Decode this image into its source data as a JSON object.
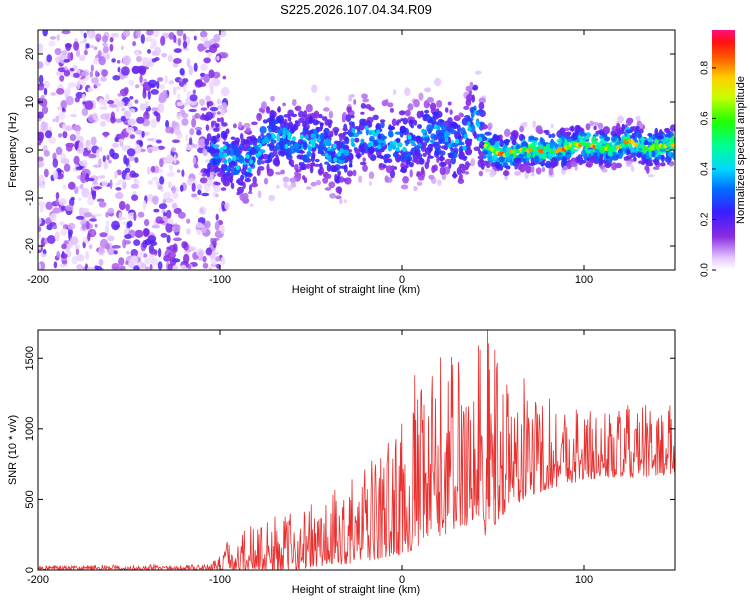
{
  "title": "S225.2026.107.04.34.R09",
  "chart_data": [
    {
      "type": "heatmap",
      "name": "spectrogram",
      "xlabel": "Height of straight line (km)",
      "ylabel": "Frequency (Hz)",
      "xlim": [
        -200,
        150
      ],
      "ylim": [
        -25,
        25
      ],
      "xticks": [
        "-200",
        "-100",
        "0",
        "100"
      ],
      "yticks": [
        "-20",
        "-10",
        "0",
        "10",
        "20"
      ],
      "colorbar": {
        "label": "Normalized spectral amplitude",
        "range": [
          0.0,
          0.95
        ],
        "ticks": [
          "0.0",
          "0.2",
          "0.4",
          "0.6",
          "0.8"
        ]
      },
      "noise_region_end_km": -105,
      "ridge": [
        {
          "x": -105,
          "y": 1
        },
        {
          "x": -95,
          "y": -2
        },
        {
          "x": -85,
          "y": -3
        },
        {
          "x": -75,
          "y": 2
        },
        {
          "x": -65,
          "y": 3
        },
        {
          "x": -55,
          "y": 1
        },
        {
          "x": -45,
          "y": 2
        },
        {
          "x": -35,
          "y": -2
        },
        {
          "x": -25,
          "y": 3
        },
        {
          "x": -15,
          "y": 3
        },
        {
          "x": -5,
          "y": 1
        },
        {
          "x": 5,
          "y": 1
        },
        {
          "x": 15,
          "y": 3
        },
        {
          "x": 25,
          "y": 3
        },
        {
          "x": 30,
          "y": 0
        },
        {
          "x": 35,
          "y": 2
        },
        {
          "x": 40,
          "y": 8
        },
        {
          "x": 45,
          "y": 1
        },
        {
          "x": 55,
          "y": -1
        },
        {
          "x": 65,
          "y": 0
        },
        {
          "x": 75,
          "y": 0
        },
        {
          "x": 85,
          "y": 0
        },
        {
          "x": 95,
          "y": 1
        },
        {
          "x": 105,
          "y": 1
        },
        {
          "x": 115,
          "y": 0
        },
        {
          "x": 125,
          "y": 2
        },
        {
          "x": 135,
          "y": 0
        },
        {
          "x": 145,
          "y": 1
        }
      ]
    },
    {
      "type": "line",
      "name": "snr",
      "xlabel": "Height of straight line (km)",
      "ylabel": "SNR (10 * v/v)",
      "xlim": [
        -200,
        150
      ],
      "ylim": [
        0,
        1700
      ],
      "xticks": [
        "-200",
        "-100",
        "0",
        "100"
      ],
      "yticks": [
        "0",
        "500",
        "1000",
        "1500"
      ],
      "color": "#e8302f",
      "envelope": [
        {
          "x": -200,
          "base": 10,
          "amp": 20
        },
        {
          "x": -105,
          "base": 12,
          "amp": 25
        },
        {
          "x": -95,
          "base": 60,
          "amp": 150
        },
        {
          "x": -80,
          "base": 90,
          "amp": 230
        },
        {
          "x": -60,
          "base": 120,
          "amp": 260
        },
        {
          "x": -40,
          "base": 170,
          "amp": 320
        },
        {
          "x": -20,
          "base": 250,
          "amp": 420
        },
        {
          "x": 0,
          "base": 380,
          "amp": 600
        },
        {
          "x": 10,
          "base": 480,
          "amp": 700
        },
        {
          "x": 20,
          "base": 600,
          "amp": 820
        },
        {
          "x": 35,
          "base": 700,
          "amp": 850
        },
        {
          "x": 45,
          "base": 650,
          "amp": 950
        },
        {
          "x": 55,
          "base": 700,
          "amp": 700
        },
        {
          "x": 70,
          "base": 760,
          "amp": 520
        },
        {
          "x": 90,
          "base": 780,
          "amp": 380
        },
        {
          "x": 110,
          "base": 790,
          "amp": 300
        },
        {
          "x": 130,
          "base": 800,
          "amp": 330
        },
        {
          "x": 150,
          "base": 820,
          "amp": 300
        }
      ],
      "peaks": [
        {
          "x": 7,
          "y": 1380
        },
        {
          "x": 42,
          "y": 1590
        },
        {
          "x": 47,
          "y": 1700
        },
        {
          "x": 51,
          "y": 1560
        },
        {
          "x": 48,
          "y": 1420
        }
      ]
    }
  ]
}
